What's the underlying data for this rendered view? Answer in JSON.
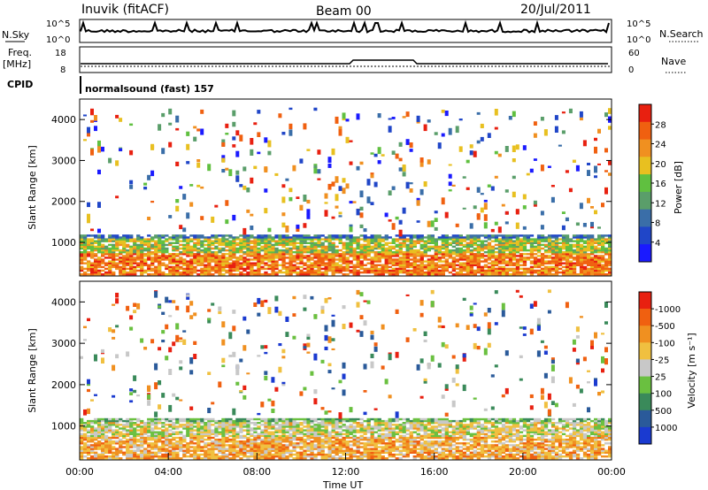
{
  "header": {
    "station": "Inuvik (fitACF)",
    "beam": "Beam 00",
    "date": "20/Jul/2011"
  },
  "strip": {
    "nsky_label": "N.Sky",
    "nsky_top": "10^5",
    "nsky_bottom": "10^0",
    "nsearch_label": "N.Search",
    "nsearch_top": "10^5",
    "nsearch_bottom": "10^0",
    "freq_label": "Freq.",
    "freq_unit": "[MHz]",
    "freq_top": "18",
    "freq_bottom": "8",
    "nave_label": "Nave",
    "nave_top": "60",
    "nave_bottom": "0",
    "cpid_label": "CPID",
    "cpid_value": "normalsound (fast) 157"
  },
  "chart_data": [
    {
      "type": "heatmap",
      "name": "power-panel",
      "ylabel": "Slant Range [km]",
      "ylim": [
        180,
        4500
      ],
      "yticks": [
        "1000",
        "2000",
        "3000",
        "4000"
      ],
      "colorbar": {
        "label": "Power [dB]",
        "ticks": [
          "4",
          "8",
          "12",
          "16",
          "20",
          "24",
          "28"
        ],
        "colors": [
          "#1a1aff",
          "#2046c8",
          "#3a6ea8",
          "#5a9e6a",
          "#60c040",
          "#e8c020",
          "#f09020",
          "#f06010",
          "#e82010"
        ]
      }
    },
    {
      "type": "heatmap",
      "name": "velocity-panel",
      "ylabel": "Slant Range [km]",
      "ylim": [
        180,
        4500
      ],
      "yticks": [
        "1000",
        "2000",
        "3000",
        "4000"
      ],
      "xlabel": "Time UT",
      "xticks": [
        "00:00",
        "04:00",
        "08:00",
        "12:00",
        "16:00",
        "20:00",
        "00:00"
      ],
      "colorbar": {
        "label": "Velocity [m s⁻¹]",
        "ticks": [
          "1000",
          "500",
          "100",
          "25",
          "-25",
          "-100",
          "-500",
          "-1000"
        ],
        "colors": [
          "#1a3ad0",
          "#2a5a9a",
          "#3a8a5a",
          "#6ac040",
          "#c8c8c8",
          "#f0c040",
          "#f09020",
          "#f06010",
          "#e82010"
        ]
      }
    }
  ]
}
